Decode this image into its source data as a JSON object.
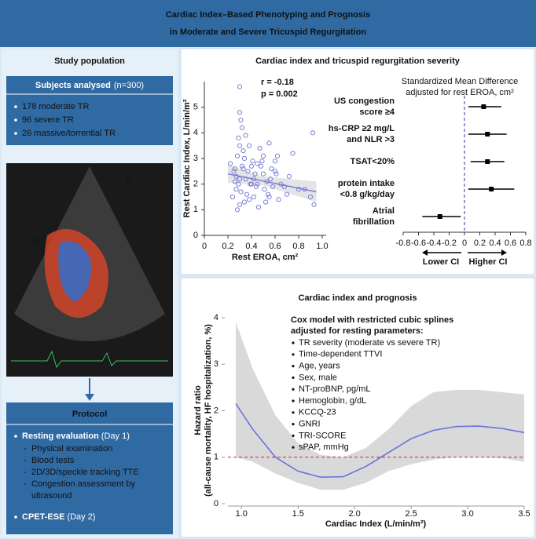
{
  "header": {
    "title": [
      "Cardiac Index–Based Phenotyping and Prognosis",
      "in Moderate and Severe Tricuspid Regurgitation"
    ]
  },
  "study_population": {
    "title": "Study population",
    "subjects_heading": "Subjects analysed",
    "subjects_n": "(n=300)",
    "bullets": [
      "178 moderate TR",
      "96 severe TR",
      "26 massive/torrential TR"
    ],
    "echo_labels": [
      "V",
      "10"
    ]
  },
  "protocol": {
    "title": "Protocol",
    "items": [
      {
        "label": "Resting evaluation",
        "when": "(Day 1)",
        "sub": [
          "Physical examination",
          "Blood tests",
          "2D/3D/speckle tracking TTE",
          "Congestion assessment by",
          "ultrasound"
        ]
      },
      {
        "label": "CPET-ESE",
        "when": "(Day 2)",
        "sub": []
      }
    ]
  },
  "chart_data": [
    {
      "type": "scatter",
      "title": "Cardiac index and tricuspid regurgitation severity",
      "xlabel": "Rest EROA, cm²",
      "ylabel": "Rest Cardiac Index, L/min/m²",
      "annotations": [
        "r = -0.18",
        "p = 0.002"
      ],
      "color": "#7b7fd6",
      "x": [
        0.25,
        0.28,
        0.3,
        0.32,
        0.27,
        0.35,
        0.38,
        0.4,
        0.42,
        0.45,
        0.3,
        0.33,
        0.29,
        0.31,
        0.26,
        0.36,
        0.5,
        0.55,
        0.6,
        0.58,
        0.52,
        0.48,
        0.62,
        0.65,
        0.7,
        0.72,
        0.75,
        0.8,
        0.9,
        0.92,
        0.3,
        0.28,
        0.34,
        0.37,
        0.41,
        0.44,
        0.47,
        0.53,
        0.57,
        0.63,
        0.22,
        0.24,
        0.27,
        0.31,
        0.33,
        0.39,
        0.43,
        0.46,
        0.51,
        0.56,
        0.3,
        0.29,
        0.32,
        0.35,
        0.38,
        0.42,
        0.49,
        0.54,
        0.61,
        0.68,
        0.26,
        0.3,
        0.34,
        0.4,
        0.45,
        0.5,
        0.55,
        0.6,
        0.85,
        0.93
      ],
      "values": [
        2.5,
        3.1,
        5.8,
        4.2,
        1.8,
        2.2,
        3.5,
        2.0,
        1.5,
        2.8,
        1.2,
        2.6,
        3.8,
        4.5,
        2.1,
        1.6,
        2.4,
        3.6,
        2.9,
        1.9,
        1.3,
        2.7,
        3.1,
        2.0,
        1.6,
        2.3,
        3.2,
        1.8,
        1.5,
        4.0,
        2.2,
        1.0,
        3.0,
        2.5,
        2.9,
        1.9,
        3.4,
        2.1,
        2.6,
        1.4,
        2.8,
        1.5,
        2.3,
        1.7,
        3.3,
        2.0,
        2.4,
        1.1,
        1.8,
        2.2,
        4.8,
        2.0,
        2.7,
        3.9,
        1.4,
        2.2,
        2.9,
        1.6,
        2.4,
        1.9,
        2.6,
        3.5,
        1.3,
        2.7,
        2.0,
        3.1,
        1.5,
        2.5,
        1.8,
        1.2
      ],
      "fit": {
        "x": [
          0.2,
          0.5,
          0.95
        ],
        "values": [
          2.4,
          2.12,
          1.7
        ],
        "lower": [
          2.05,
          1.95,
          1.3
        ],
        "upper": [
          2.75,
          2.3,
          2.1
        ]
      },
      "xlim": [
        0,
        1
      ],
      "ylim": [
        0,
        6
      ],
      "xticks": [
        0,
        0.2,
        0.4,
        0.6,
        0.8,
        {
          "value": 1,
          "label": "1.0"
        }
      ],
      "yticks": [
        0,
        1,
        2,
        3,
        4,
        5
      ]
    },
    {
      "type": "forest",
      "title": "Standardized Mean Difference adjusted for rest EROA, cm²",
      "title_lines": [
        "Standardized Mean Difference",
        "adjusted for rest EROA, cm²"
      ],
      "categories": [
        [
          "US congestion",
          "score ≥4"
        ],
        [
          "hs-CRP ≥2 mg/L",
          "and NLR >3"
        ],
        [
          "TSAT<20%"
        ],
        [
          "protein intake",
          "<0.8 g/kg/day"
        ],
        [
          "Atrial",
          "fibrillation"
        ]
      ],
      "values": [
        0.25,
        0.3,
        0.3,
        0.35,
        -0.32
      ],
      "lower": [
        0.05,
        0.05,
        0.08,
        0.05,
        -0.55
      ],
      "upper": [
        0.48,
        0.55,
        0.52,
        0.65,
        -0.05
      ],
      "xlim": [
        -0.8,
        0.8
      ],
      "xticks": [
        -0.8,
        -0.6,
        -0.4,
        -0.2,
        0,
        0.2,
        0.4,
        0.6,
        0.8
      ],
      "direction_labels": [
        "Lower CI",
        "Higher CI"
      ],
      "color": "#000000"
    },
    {
      "type": "line",
      "title": "Cardiac index and prognosis",
      "xlabel": "Cardiac Index (L/min/m²)",
      "ylabel": [
        "Hazard ratio",
        "(all-cause mortality, HF hospitalization, %)"
      ],
      "legend_title": [
        "Cox model with restricted cubic splines",
        "adjusted for resting parameters:"
      ],
      "legend_items": [
        "TR severity (moderate vs severe TR)",
        "Time-dependent TTVI",
        "Age, years",
        "Sex, male",
        "NT-proBNP, pg/mL",
        "Hemoglobin, g/dL",
        "KCCQ-23",
        "GNRI",
        "TRI-SCORE",
        "sPAP, mmHg"
      ],
      "x": [
        0.95,
        1.1,
        1.3,
        1.5,
        1.7,
        1.9,
        2.1,
        2.3,
        2.5,
        2.7,
        2.9,
        3.1,
        3.3,
        3.5
      ],
      "values": [
        2.15,
        1.6,
        1.0,
        0.7,
        0.57,
        0.58,
        0.8,
        1.1,
        1.4,
        1.58,
        1.66,
        1.67,
        1.62,
        1.53
      ],
      "lower": [
        1.0,
        0.9,
        0.65,
        0.45,
        0.3,
        0.3,
        0.45,
        0.7,
        0.85,
        0.95,
        1.0,
        1.0,
        0.98,
        0.9
      ],
      "upper": [
        3.9,
        2.9,
        1.9,
        1.3,
        1.05,
        1.0,
        1.2,
        1.6,
        2.1,
        2.4,
        2.45,
        2.45,
        2.4,
        2.35
      ],
      "color": "#6a6fe0",
      "band_color": "#d9d9d9",
      "reference_line": 1,
      "reference_color": "#e02020",
      "xlim": [
        0.88,
        3.5
      ],
      "ylim": [
        0,
        4
      ],
      "xticks": [
        {
          "value": 1,
          "label": "1.0"
        },
        1.5,
        {
          "value": 2,
          "label": "2.0"
        },
        2.5,
        {
          "value": 3,
          "label": "3.0"
        },
        3.5
      ],
      "yticks": [
        0,
        1,
        2,
        3,
        4
      ]
    }
  ]
}
